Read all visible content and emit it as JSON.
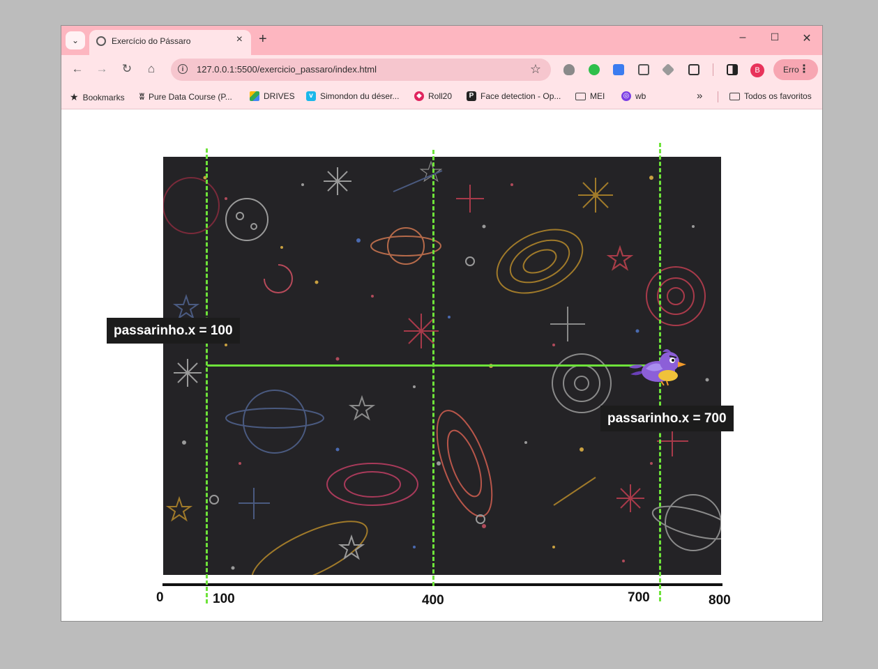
{
  "browser": {
    "tab_title": "Exercício do Pássaro",
    "url": "127.0.0.1:5500/exercicio_passaro/index.html",
    "profile_initial": "B",
    "error_label": "Erro",
    "window_controls": {
      "minimize": "–",
      "maximize": "☐",
      "close": "✕"
    }
  },
  "bookmarks": {
    "items": [
      {
        "label": "Bookmarks",
        "icon": "star-icon"
      },
      {
        "label": "Pure Data Course (P...",
        "icon": "puredata-icon"
      },
      {
        "label": "DRIVES",
        "icon": "google-drive-icon"
      },
      {
        "label": "Simondon du déser...",
        "icon": "vimeo-icon"
      },
      {
        "label": "Roll20",
        "icon": "roll20-icon"
      },
      {
        "label": "Face detection - Op...",
        "icon": "p-icon"
      },
      {
        "label": "MEI",
        "icon": "folder-icon"
      },
      {
        "label": "wb",
        "icon": "wb-icon"
      }
    ],
    "overflow": "»",
    "all_favorites": "Todos os favoritos"
  },
  "diagram": {
    "axis_labels": [
      "0",
      "100",
      "400",
      "700",
      "800"
    ],
    "start_label": "passarinho.x = 100",
    "end_label": "passarinho.x = 700"
  },
  "colors": {
    "accent_green": "#6ee33a",
    "tab_bar": "#fdb6c0",
    "game_background": "#242326"
  }
}
